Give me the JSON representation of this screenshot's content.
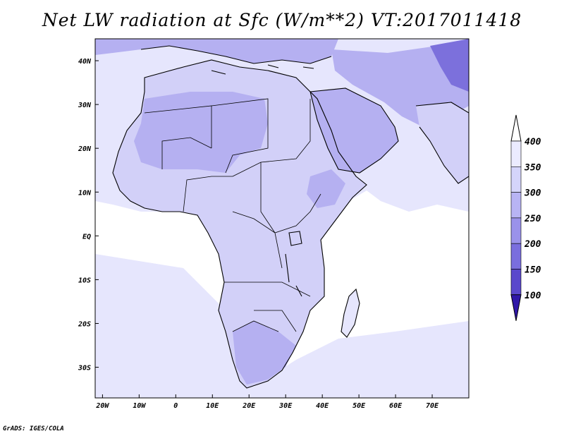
{
  "title": "Net LW radiation at Sfc (W/m**2) VT:2017011418",
  "credit": "GrADS: IGES/COLA",
  "map": {
    "region": "Africa and Middle East",
    "lon_range": [
      -22,
      80
    ],
    "lat_range": [
      -37,
      45
    ],
    "lon_ticks": [
      "20W",
      "10W",
      "0",
      "10E",
      "20E",
      "30E",
      "40E",
      "50E",
      "60E",
      "70E"
    ],
    "lat_ticks": [
      "40N",
      "30N",
      "20N",
      "10N",
      "EQ",
      "10S",
      "20S",
      "30S"
    ]
  },
  "colorbar": {
    "labels": [
      "400",
      "350",
      "300",
      "250",
      "200",
      "150",
      "100"
    ],
    "colors": [
      "#ebebff",
      "#d4d4fb",
      "#b8b4f4",
      "#9a92ea",
      "#7a6ede",
      "#5a48cc",
      "#3a22b4"
    ],
    "overflow_color": "#ffffff",
    "underflow_color": "#3018a8"
  },
  "palette": {
    "ocean": "#ffffff",
    "level_400": "#e6e6fd",
    "level_350": "#d2d0f8",
    "level_300": "#b5b0f1",
    "level_250": "#9b95ea",
    "level_200": "#7c70dc",
    "coast": "#000000"
  }
}
